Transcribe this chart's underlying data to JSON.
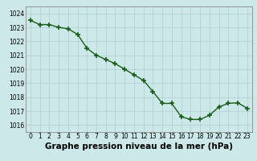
{
  "x": [
    0,
    1,
    2,
    3,
    4,
    5,
    6,
    7,
    8,
    9,
    10,
    11,
    12,
    13,
    14,
    15,
    16,
    17,
    18,
    19,
    20,
    21,
    22,
    23
  ],
  "y": [
    1023.5,
    1023.2,
    1023.2,
    1023.0,
    1022.9,
    1022.5,
    1021.5,
    1021.0,
    1020.7,
    1020.4,
    1020.0,
    1019.6,
    1019.2,
    1018.4,
    1017.55,
    1017.55,
    1016.6,
    1016.4,
    1016.4,
    1016.7,
    1017.3,
    1017.55,
    1017.6,
    1017.2
  ],
  "line_color": "#1a5c1a",
  "marker_color": "#1a5c1a",
  "bg_color": "#cce8e8",
  "grid_color": "#b0cccc",
  "xlabel": "Graphe pression niveau de la mer (hPa)",
  "ylim": [
    1015.5,
    1024.5
  ],
  "yticks": [
    1016,
    1017,
    1018,
    1019,
    1020,
    1021,
    1022,
    1023,
    1024
  ],
  "xticks": [
    0,
    1,
    2,
    3,
    4,
    5,
    6,
    7,
    8,
    9,
    10,
    11,
    12,
    13,
    14,
    15,
    16,
    17,
    18,
    19,
    20,
    21,
    22,
    23
  ],
  "tick_fontsize": 5.5,
  "xlabel_fontsize": 7.5,
  "marker_size": 4,
  "line_width": 1.0
}
